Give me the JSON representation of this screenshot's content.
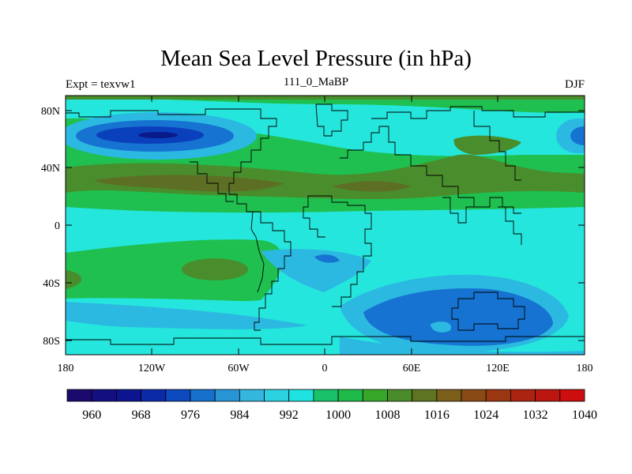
{
  "title": "Mean Sea Level Pressure (in hPa)",
  "left_subtitle": "Expt = texvw1",
  "center_subtitle": "111_0_MaBP",
  "right_subtitle": "DJF",
  "lat_ticks": [
    "80N",
    "40N",
    "0",
    "40S",
    "80S"
  ],
  "lon_ticks": [
    "180",
    "120W",
    "60W",
    "0",
    "60E",
    "120E",
    "180"
  ],
  "colorbar": {
    "labels": [
      "960",
      "968",
      "976",
      "984",
      "992",
      "1000",
      "1008",
      "1016",
      "1024",
      "1032",
      "1040"
    ],
    "colors": [
      "#1a0a6e",
      "#140f80",
      "#0d1490",
      "#0b2aa8",
      "#0d49bf",
      "#1670cc",
      "#2896d6",
      "#34b6de",
      "#2dd2e0",
      "#1fe3e0",
      "#17c26a",
      "#1fba4a",
      "#37a72a",
      "#4a8b2a",
      "#5e7421",
      "#7a5e1a",
      "#8a4a14",
      "#9b3612",
      "#ab2412",
      "#bb160f",
      "#cc0e0e"
    ]
  },
  "colors": {
    "cyan": "#25e6dc",
    "light_blue": "#2bb9e1",
    "mid_blue": "#1673d1",
    "dark_blue": "#0b40bd",
    "navy": "#0b1a8a",
    "green": "#1fc04f",
    "olive": "#4a8d2c",
    "brown": "#5d6f25"
  }
}
